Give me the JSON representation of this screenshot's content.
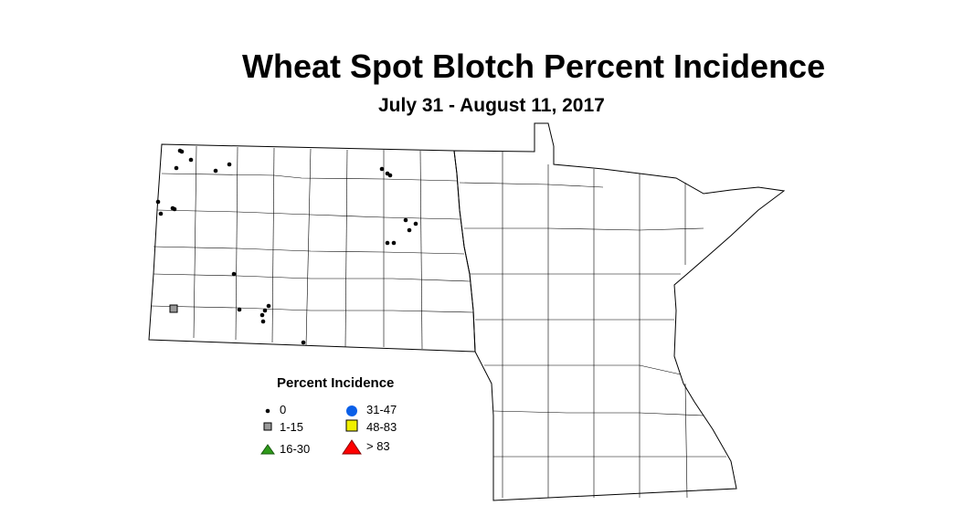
{
  "title": "Wheat Spot Blotch Percent Incidence",
  "subtitle": "July 31 - August 11, 2017",
  "legend": {
    "title": "Percent Incidence",
    "items": [
      {
        "label": "0",
        "symbol": "small-dot",
        "color": "#000000"
      },
      {
        "label": "1-15",
        "symbol": "square",
        "color": "#9a9a9a"
      },
      {
        "label": "16-30",
        "symbol": "triangle",
        "color": "#2e9a1a"
      },
      {
        "label": "31-47",
        "symbol": "circle",
        "color": "#0a5fe8"
      },
      {
        "label": "48-83",
        "symbol": "square",
        "color": "#f0f000"
      },
      {
        "label": "> 83",
        "symbol": "triangle",
        "color": "#ff0000"
      }
    ]
  }
}
